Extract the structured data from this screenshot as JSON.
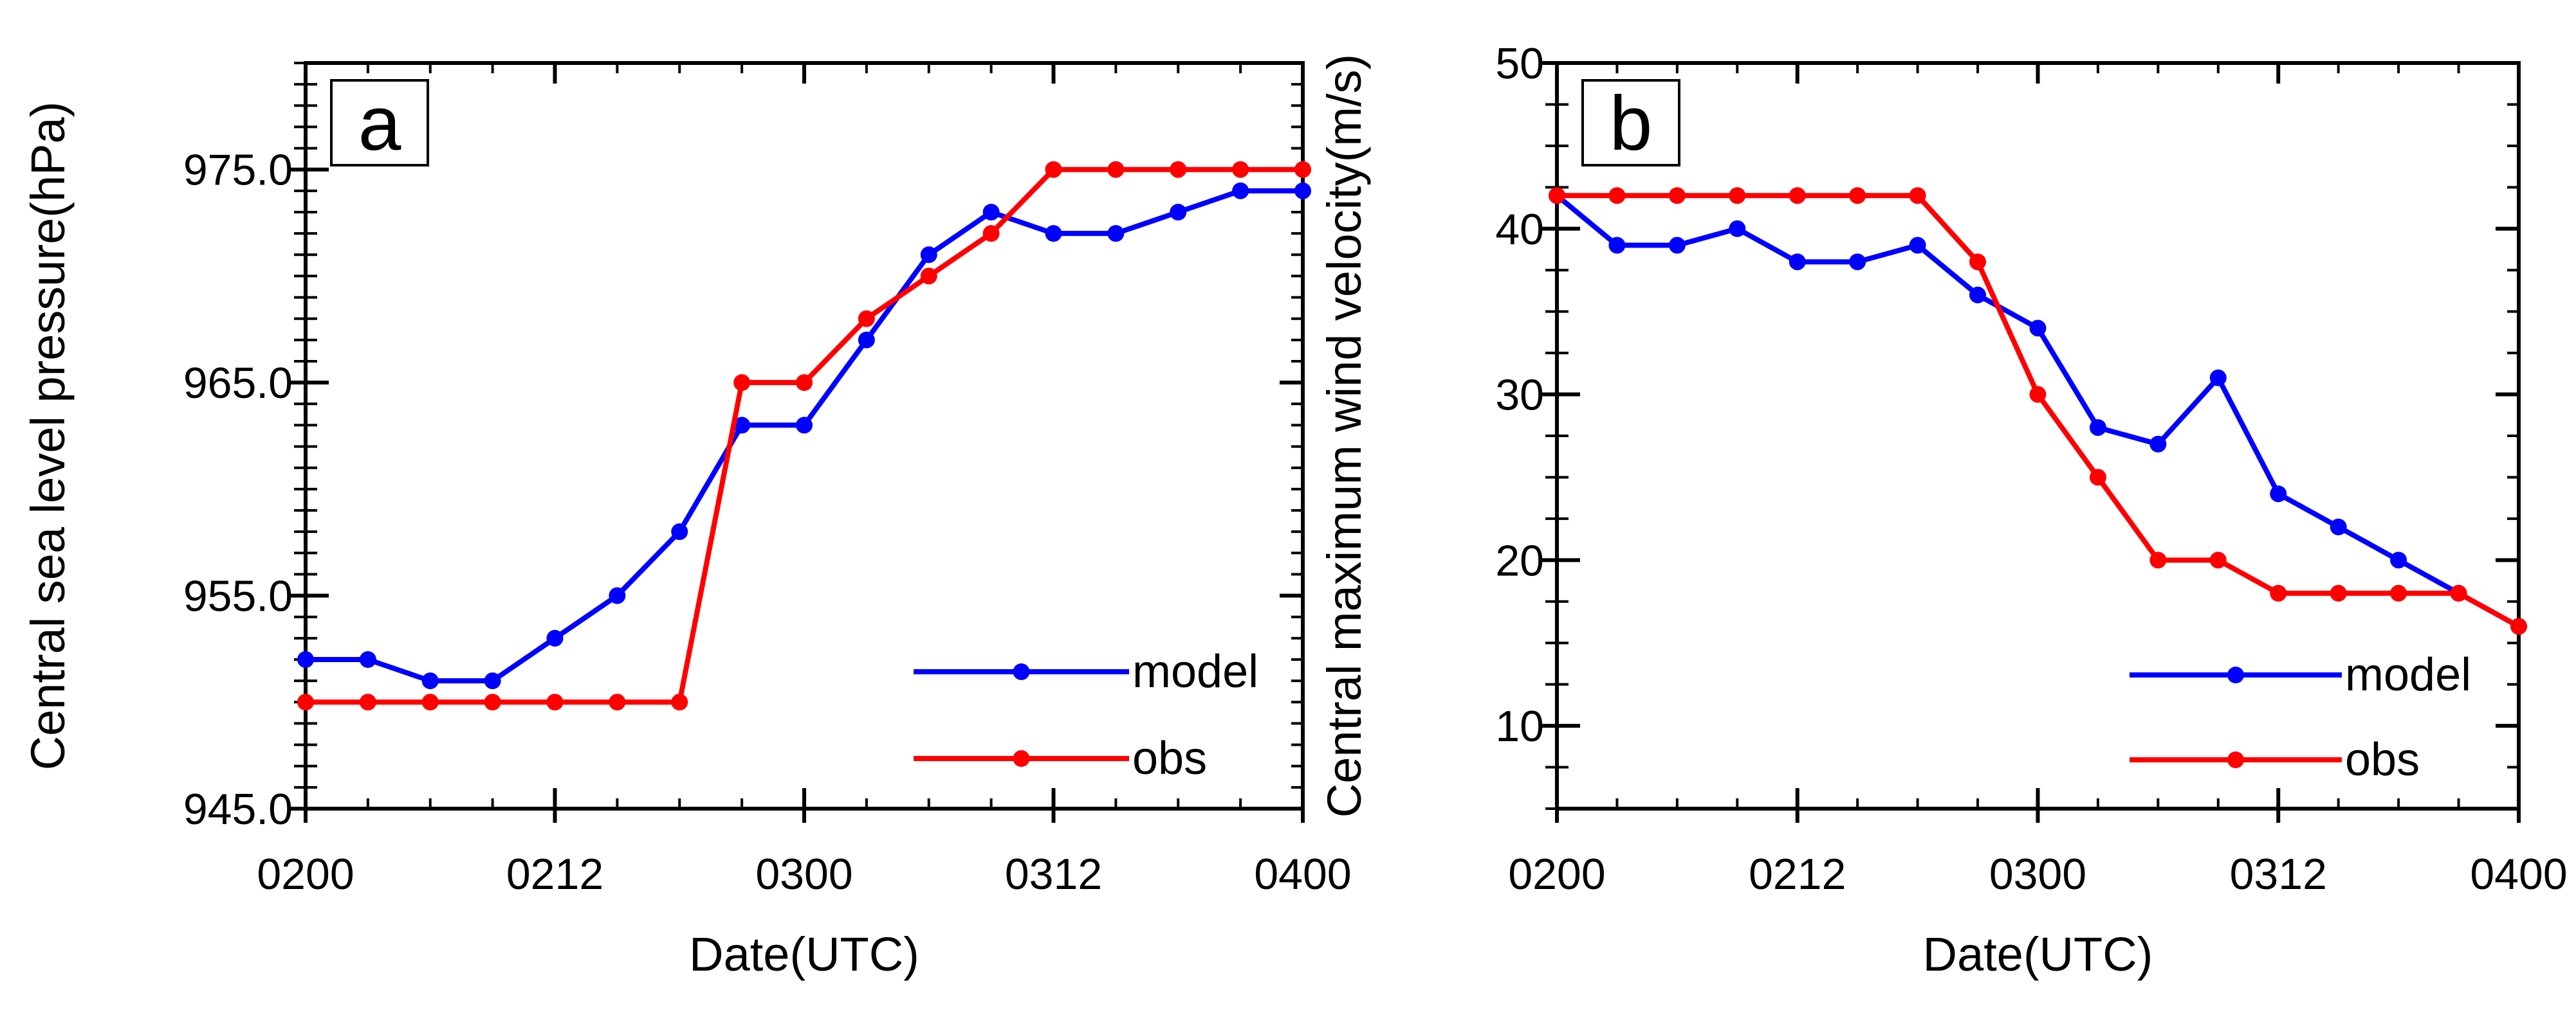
{
  "chart_data": [
    {
      "type": "line",
      "panel_label": "a",
      "xlabel": "Date(UTC)",
      "ylabel": "Central sea level pressure(hPa)",
      "x_ticks": [
        "0200",
        "0212",
        "0300",
        "0312",
        "0400"
      ],
      "x_range": [
        0,
        48
      ],
      "ylim": [
        945,
        980
      ],
      "y_ticks": [
        "945.0",
        "955.0",
        "965.0",
        "975.0"
      ],
      "y_tick_values": [
        945,
        955,
        965,
        975
      ],
      "series": [
        {
          "name": "model",
          "color": "#0000ff",
          "x": [
            0,
            3,
            6,
            9,
            12,
            15,
            18,
            21,
            24,
            27,
            30,
            33,
            36,
            39,
            42,
            45,
            48
          ],
          "values": [
            952,
            952,
            951,
            951,
            953,
            955,
            958,
            963,
            963,
            967,
            971,
            973,
            972,
            972,
            973,
            974,
            974
          ]
        },
        {
          "name": "obs",
          "color": "#ff0000",
          "x": [
            0,
            3,
            6,
            9,
            12,
            15,
            18,
            21,
            24,
            27,
            30,
            33,
            36,
            39,
            42,
            45,
            48
          ],
          "values": [
            950,
            950,
            950,
            950,
            950,
            950,
            950,
            965,
            965,
            968,
            970,
            972,
            975,
            975,
            975,
            975,
            975
          ]
        }
      ]
    },
    {
      "type": "line",
      "panel_label": "b",
      "xlabel": "Date(UTC)",
      "ylabel": "Central maximum wind velocity(m/s)",
      "x_ticks": [
        "0200",
        "0212",
        "0300",
        "0312",
        "0400"
      ],
      "x_range": [
        0,
        48
      ],
      "ylim": [
        5,
        50
      ],
      "y_ticks": [
        "10",
        "20",
        "30",
        "40",
        "50"
      ],
      "y_tick_values": [
        10,
        20,
        30,
        40,
        50
      ],
      "series": [
        {
          "name": "model",
          "color": "#0000ff",
          "x": [
            0,
            3,
            6,
            9,
            12,
            15,
            18,
            21,
            24,
            27,
            30,
            33,
            36,
            39,
            42,
            45,
            48
          ],
          "values": [
            42,
            39,
            39,
            40,
            38,
            38,
            39,
            36,
            34,
            28,
            27,
            31,
            24,
            22,
            20,
            18,
            16
          ]
        },
        {
          "name": "obs",
          "color": "#ff0000",
          "x": [
            0,
            3,
            6,
            9,
            12,
            15,
            18,
            21,
            24,
            27,
            30,
            33,
            36,
            39,
            42,
            45,
            48
          ],
          "values": [
            42,
            42,
            42,
            42,
            42,
            42,
            42,
            38,
            30,
            25,
            20,
            20,
            18,
            18,
            18,
            18,
            16
          ]
        }
      ]
    }
  ]
}
